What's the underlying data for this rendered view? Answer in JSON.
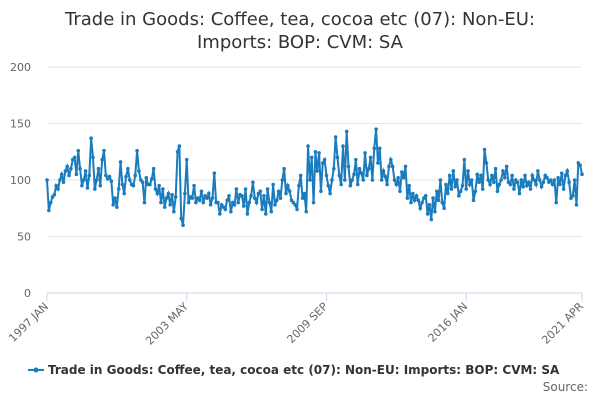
{
  "chart_data": {
    "type": "line",
    "title": "Trade in Goods: Coffee, tea, cocoa etc (07): Non-EU: Imports: BOP: CVM: SA",
    "source": "Source:",
    "categories": [
      "1997 JAN",
      null,
      null,
      null,
      null,
      null,
      null,
      null,
      null,
      null,
      null,
      null,
      null,
      null,
      null,
      null,
      null,
      null,
      null,
      null,
      null,
      null,
      null,
      null,
      null,
      null,
      null,
      null,
      null,
      null,
      null,
      null,
      null,
      null,
      null,
      null,
      null,
      null,
      null,
      null,
      null,
      null,
      null,
      null,
      null,
      null,
      null,
      null,
      null,
      null,
      null,
      null,
      null,
      null,
      null,
      null,
      null,
      null,
      null,
      null,
      null,
      null,
      null,
      null,
      null,
      null,
      null,
      null,
      null,
      null,
      null,
      null,
      null,
      null,
      null,
      null,
      "2003 MAY",
      null,
      null,
      null,
      null,
      null,
      null,
      null,
      null,
      null,
      null,
      null,
      null,
      null,
      null,
      null,
      null,
      null,
      null,
      null,
      null,
      null,
      null,
      null,
      null,
      null,
      null,
      null,
      null,
      null,
      null,
      null,
      null,
      null,
      null,
      null,
      null,
      null,
      null,
      null,
      null,
      null,
      null,
      null,
      null,
      null,
      null,
      null,
      null,
      null,
      null,
      null,
      null,
      null,
      null,
      null,
      null,
      null,
      null,
      null,
      null,
      null,
      null,
      null,
      null,
      null,
      null,
      null,
      null,
      null,
      null,
      null,
      null,
      null,
      null,
      null,
      "2009 SEP",
      null,
      null,
      null,
      null,
      null,
      null,
      null,
      null,
      null,
      null,
      null,
      null,
      null,
      null,
      null,
      null,
      null,
      null,
      null,
      null,
      null,
      null,
      null,
      null,
      null,
      null,
      null,
      null,
      null,
      null,
      null,
      null,
      null,
      null,
      null,
      null,
      null,
      null,
      null,
      null,
      null,
      null,
      null,
      null,
      null,
      null,
      null,
      null,
      null,
      null,
      null,
      null,
      null,
      null,
      null,
      null,
      null,
      null,
      null,
      null,
      null,
      null,
      null,
      null,
      null,
      null,
      null,
      null,
      null,
      null,
      null,
      null,
      null,
      null,
      null,
      "2016 JAN",
      null,
      null,
      null,
      null,
      null,
      null,
      null,
      null,
      null,
      null,
      null,
      null,
      null,
      null,
      null,
      null,
      null,
      null,
      null,
      null,
      null,
      null,
      null,
      null,
      null,
      null,
      null,
      null,
      null,
      null,
      null,
      null,
      null,
      null,
      null,
      null,
      null,
      null,
      null,
      null,
      null,
      null,
      null,
      null,
      null,
      null,
      null,
      null,
      null,
      null,
      null,
      null,
      null,
      null,
      null,
      null,
      null,
      null,
      null,
      null,
      null,
      null,
      "2021 APR"
    ],
    "series": [
      {
        "name": "Trade in Goods: Coffee, tea, cocoa etc (07): Non-EU: Imports: BOP: CVM: SA",
        "color": "#1a7bbd",
        "values": [
          100,
          73,
          80,
          85,
          87,
          95,
          92,
          100,
          105,
          98,
          108,
          112,
          104,
          110,
          118,
          120,
          105,
          126,
          110,
          95,
          100,
          108,
          93,
          104,
          137,
          120,
          92,
          100,
          110,
          95,
          118,
          126,
          104,
          101,
          103,
          99,
          78,
          84,
          76,
          92,
          116,
          96,
          88,
          103,
          110,
          100,
          96,
          95,
          104,
          126,
          108,
          100,
          98,
          80,
          102,
          96,
          96,
          101,
          110,
          92,
          88,
          95,
          80,
          92,
          76,
          84,
          88,
          78,
          87,
          72,
          85,
          125,
          130,
          66,
          60,
          88,
          118,
          80,
          85,
          84,
          95,
          80,
          84,
          82,
          90,
          80,
          86,
          84,
          88,
          78,
          84,
          106,
          80,
          80,
          70,
          78,
          76,
          74,
          82,
          86,
          72,
          80,
          78,
          92,
          80,
          87,
          86,
          77,
          92,
          70,
          80,
          86,
          98,
          84,
          80,
          88,
          90,
          74,
          86,
          70,
          92,
          80,
          72,
          96,
          78,
          82,
          90,
          84,
          100,
          110,
          88,
          95,
          90,
          82,
          80,
          78,
          74,
          95,
          104,
          84,
          88,
          72,
          130,
          100,
          120,
          80,
          125,
          108,
          124,
          90,
          115,
          118,
          104,
          95,
          88,
          100,
          110,
          138,
          120,
          104,
          96,
          130,
          100,
          143,
          112,
          95,
          100,
          105,
          118,
          96,
          110,
          106,
          100,
          124,
          104,
          110,
          120,
          100,
          128,
          145,
          115,
          128,
          100,
          108,
          103,
          96,
          112,
          118,
          112,
          100,
          96,
          102,
          90,
          107,
          102,
          112,
          84,
          95,
          80,
          88,
          82,
          86,
          82,
          75,
          80,
          84,
          86,
          70,
          78,
          65,
          84,
          72,
          90,
          82,
          100,
          80,
          75,
          96,
          88,
          104,
          92,
          108,
          94,
          100,
          86,
          90,
          95,
          118,
          92,
          108,
          96,
          100,
          82,
          90,
          105,
          98,
          104,
          92,
          127,
          115,
          100,
          96,
          104,
          98,
          110,
          90,
          96,
          100,
          108,
          102,
          112,
          98,
          96,
          104,
          92,
          100,
          98,
          88,
          100,
          94,
          104,
          95,
          98,
          92,
          104,
          100,
          96,
          108,
          100,
          94,
          98,
          104,
          102,
          98,
          100,
          96,
          100,
          80,
          102,
          96,
          106,
          92,
          104,
          108,
          98,
          84,
          86,
          100,
          78,
          115,
          113,
          105
        ]
      }
    ],
    "ylim": [
      0,
      200
    ],
    "yticks": [
      0,
      50,
      100,
      150,
      200
    ],
    "grid": true
  }
}
